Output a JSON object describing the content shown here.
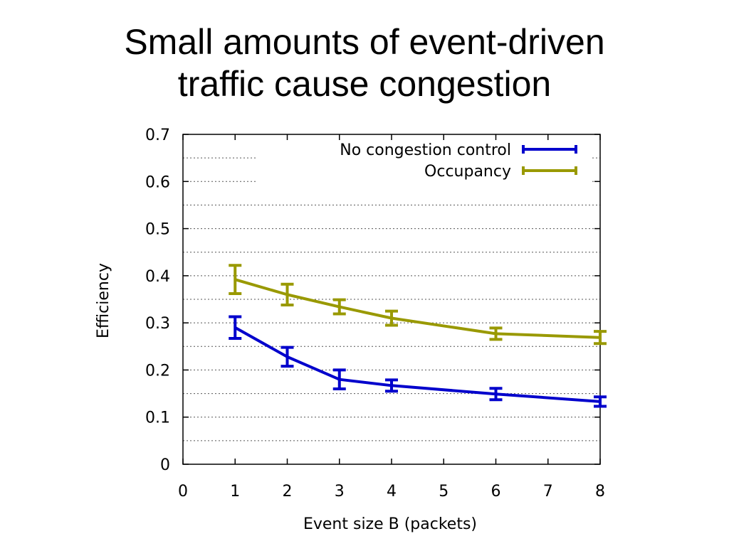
{
  "slide": {
    "title_line1": "Small amounts of event-driven",
    "title_line2": "traffic cause congestion"
  },
  "chart_data": {
    "type": "line",
    "xlabel": "Event size B (packets)",
    "ylabel": "Efficiency",
    "xlim": [
      0,
      8
    ],
    "ylim": [
      0,
      0.7
    ],
    "xticks": [
      "0",
      "1",
      "2",
      "3",
      "4",
      "5",
      "6",
      "7",
      "8"
    ],
    "yticks": [
      "0",
      "0.1",
      "0.2",
      "0.3",
      "0.4",
      "0.5",
      "0.6",
      "0.7"
    ],
    "grid": "horizontal-dotted",
    "legend": "top-right",
    "series": [
      {
        "name": "No congestion control",
        "color": "#0000cc",
        "x": [
          1,
          2,
          3,
          4,
          6,
          8
        ],
        "y": [
          0.29,
          0.228,
          0.18,
          0.167,
          0.149,
          0.133
        ],
        "err": [
          0.023,
          0.02,
          0.02,
          0.012,
          0.012,
          0.01
        ]
      },
      {
        "name": "Occupancy",
        "color": "#999900",
        "x": [
          1,
          2,
          3,
          4,
          6,
          8
        ],
        "y": [
          0.392,
          0.36,
          0.334,
          0.31,
          0.277,
          0.269
        ],
        "err": [
          0.03,
          0.022,
          0.015,
          0.015,
          0.012,
          0.013
        ]
      }
    ]
  }
}
